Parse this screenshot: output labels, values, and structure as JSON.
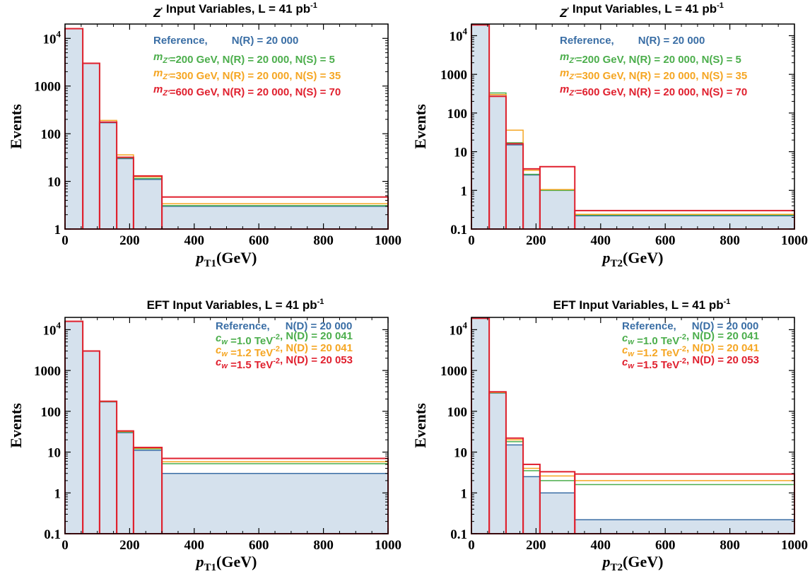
{
  "figure_title": "",
  "chart_data": [
    {
      "type": "bar",
      "title": "Z' Input Variables, L = 41 pb^-1",
      "xlabel": "pT1(GeV)",
      "ylabel": "Events",
      "xlim": [
        0,
        1000
      ],
      "ylim": [
        1,
        20000
      ],
      "yscale": "log",
      "x_ticks": [
        "0",
        "200",
        "400",
        "600",
        "800",
        "1000"
      ],
      "y_ticks": [
        "1",
        "10",
        "100",
        "1000",
        "10^4"
      ],
      "bin_edges": [
        0,
        55,
        107,
        160,
        212,
        300,
        1000
      ],
      "legend_position": "top-right",
      "series": [
        {
          "name": "Reference, N(R) = 20 000",
          "color": "#3a6ea5",
          "filled": true,
          "values": [
            16000,
            3000,
            170,
            30,
            11,
            3.0
          ]
        },
        {
          "name": "m_Z'=200 GeV, N(R) = 20 000, N(S) = 5",
          "color": "#4cae4c",
          "filled": false,
          "values": [
            16000,
            3000,
            175,
            31,
            11.5,
            3.1
          ]
        },
        {
          "name": "m_Z'=300 GeV, N(R) = 20 000, N(S) = 35",
          "color": "#f5a623",
          "filled": false,
          "values": [
            16000,
            3000,
            190,
            36,
            12.5,
            3.4
          ]
        },
        {
          "name": "m_Z'=600 GeV, N(R) = 20 000, N(S) = 70",
          "color": "#e0202e",
          "filled": false,
          "values": [
            16000,
            3000,
            175,
            32,
            13,
            4.7
          ]
        }
      ]
    },
    {
      "type": "bar",
      "title": "Z' Input Variables, L = 41 pb^-1",
      "xlabel": "pT2(GeV)",
      "ylabel": "Events",
      "xlim": [
        0,
        1000
      ],
      "ylim": [
        0.1,
        20000
      ],
      "yscale": "log",
      "x_ticks": [
        "0",
        "200",
        "400",
        "600",
        "800",
        "1000"
      ],
      "y_ticks": [
        "0.1",
        "1",
        "10",
        "100",
        "1000",
        "10^4"
      ],
      "bin_edges": [
        0,
        55,
        107,
        160,
        212,
        320,
        1000
      ],
      "legend_position": "top-right",
      "series": [
        {
          "name": "Reference, N(R) = 20 000",
          "color": "#3a6ea5",
          "filled": true,
          "values": [
            19000,
            300,
            15,
            2.5,
            1.0,
            0.22
          ]
        },
        {
          "name": "m_Z'=200 GeV, N(R) = 20 000, N(S) = 5",
          "color": "#4cae4c",
          "filled": false,
          "values": [
            19000,
            330,
            17,
            2.6,
            1.0,
            0.23
          ]
        },
        {
          "name": "m_Z'=300 GeV, N(R) = 20 000, N(S) = 35",
          "color": "#f5a623",
          "filled": false,
          "values": [
            19000,
            300,
            36,
            3.3,
            1.05,
            0.24
          ]
        },
        {
          "name": "m_Z'=600 GeV, N(R) = 20 000, N(S) = 70",
          "color": "#e0202e",
          "filled": false,
          "values": [
            19000,
            270,
            16,
            3.6,
            4.1,
            0.3
          ]
        }
      ]
    },
    {
      "type": "bar",
      "title": "EFT Input Variables, L = 41 pb^-1",
      "xlabel": "pT1(GeV)",
      "ylabel": "Events",
      "xlim": [
        0,
        1000
      ],
      "ylim": [
        0.1,
        20000
      ],
      "yscale": "log",
      "x_ticks": [
        "0",
        "200",
        "400",
        "600",
        "800",
        "1000"
      ],
      "y_ticks": [
        "0.1",
        "1",
        "10",
        "100",
        "1000",
        "10^4"
      ],
      "bin_edges": [
        0,
        55,
        107,
        160,
        212,
        300,
        1000
      ],
      "legend_position": "top-right",
      "series": [
        {
          "name": "Reference, N(D) = 20 000",
          "color": "#3a6ea5",
          "filled": true,
          "values": [
            16000,
            3000,
            170,
            30,
            11,
            3.0
          ]
        },
        {
          "name": "c_w =1.0 TeV^-2, N(D) = 20 041",
          "color": "#4cae4c",
          "filled": false,
          "values": [
            16000,
            3000,
            172,
            31,
            12,
            5.2
          ]
        },
        {
          "name": "c_w =1.2 TeV^-2, N(D) = 20 041",
          "color": "#f5a623",
          "filled": false,
          "values": [
            16000,
            3000,
            174,
            32,
            12.5,
            5.8
          ]
        },
        {
          "name": "c_w =1.5 TeV^-2, N(D) = 20 053",
          "color": "#e0202e",
          "filled": false,
          "values": [
            16000,
            3000,
            176,
            33,
            13,
            7.0
          ]
        }
      ]
    },
    {
      "type": "bar",
      "title": "EFT Input Variables, L = 41 pb^-1",
      "xlabel": "pT2(GeV)",
      "ylabel": "Events",
      "xlim": [
        0,
        1000
      ],
      "ylim": [
        0.1,
        20000
      ],
      "yscale": "log",
      "x_ticks": [
        "0",
        "200",
        "400",
        "600",
        "800",
        "1000"
      ],
      "y_ticks": [
        "0.1",
        "1",
        "10",
        "100",
        "1000",
        "10^4"
      ],
      "bin_edges": [
        0,
        55,
        107,
        160,
        212,
        320,
        1000
      ],
      "legend_position": "top-right",
      "series": [
        {
          "name": "Reference, N(D) = 20 000",
          "color": "#3a6ea5",
          "filled": true,
          "values": [
            19000,
            280,
            15,
            2.5,
            1.0,
            0.22
          ]
        },
        {
          "name": "c_w =1.0 TeV^-2, N(D) = 20 041",
          "color": "#4cae4c",
          "filled": false,
          "values": [
            19000,
            285,
            18,
            3.5,
            2.0,
            1.6
          ]
        },
        {
          "name": "c_w =1.2 TeV^-2, N(D) = 20 041",
          "color": "#f5a623",
          "filled": false,
          "values": [
            19000,
            290,
            20,
            4.0,
            2.6,
            2.0
          ]
        },
        {
          "name": "c_w =1.5 TeV^-2, N(D) = 20 053",
          "color": "#e0202e",
          "filled": false,
          "values": [
            19000,
            300,
            22,
            5.0,
            3.3,
            2.9
          ]
        }
      ]
    }
  ]
}
